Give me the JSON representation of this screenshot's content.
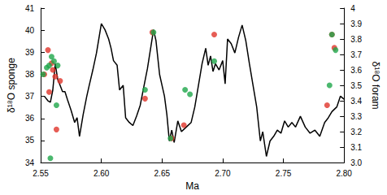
{
  "chart_data": {
    "type": "scatter",
    "x_label": "Ma",
    "y_label": "δ¹⁸O sponge",
    "y2_label": "δ¹⁸O foram",
    "xlim": [
      2.55,
      2.8
    ],
    "xticks": [
      2.55,
      {
        "value": 2.6,
        "label": "2.60"
      },
      2.65,
      {
        "value": 2.7,
        "label": "2.70"
      },
      2.75,
      {
        "value": 2.8,
        "label": "2.80"
      }
    ],
    "ylim": [
      34,
      41
    ],
    "yticks": [
      34,
      35,
      36,
      37,
      38,
      39,
      40,
      41
    ],
    "y2lim": [
      3,
      4
    ],
    "y2ticks": [
      {
        "value": 3,
        "label": "3.0"
      },
      3.1,
      3.2,
      3.3,
      3.4,
      3.5,
      3.6,
      3.7,
      3.8,
      3.9,
      4
    ],
    "grid": false,
    "series": [
      {
        "type": "line",
        "axis": "y2",
        "color": "#000000",
        "marker": "none",
        "x": [
          2.553,
          2.556,
          2.558,
          2.56,
          2.562,
          2.564,
          2.566,
          2.568,
          2.57,
          2.572,
          2.575,
          2.578,
          2.58,
          2.582,
          2.585,
          2.588,
          2.59,
          2.593,
          2.596,
          2.6,
          2.603,
          2.606,
          2.608,
          2.61,
          2.613,
          2.615,
          2.618,
          2.62,
          2.623,
          2.626,
          2.629,
          2.632,
          2.635,
          2.638,
          2.641,
          2.643,
          2.645,
          2.648,
          2.65,
          2.652,
          2.654,
          2.656,
          2.658,
          2.66,
          2.663,
          2.666,
          2.67,
          2.674,
          2.677,
          2.68,
          2.683,
          2.686,
          2.688,
          2.69,
          2.692,
          2.694,
          2.697,
          2.7,
          2.702,
          2.704,
          2.707,
          2.71,
          2.713,
          2.716,
          2.719,
          2.722,
          2.725,
          2.728,
          2.731,
          2.733,
          2.736,
          2.739,
          2.742,
          2.745,
          2.748,
          2.751,
          2.754,
          2.757,
          2.76,
          2.764,
          2.768,
          2.772,
          2.776,
          2.78,
          2.784,
          2.787,
          2.79,
          2.794,
          2.797,
          2.8
        ],
        "values": [
          3.43,
          3.4,
          3.39,
          3.47,
          3.64,
          3.54,
          3.5,
          3.46,
          3.46,
          3.41,
          3.34,
          3.26,
          3.29,
          3.17,
          3.31,
          3.43,
          3.5,
          3.6,
          3.71,
          3.9,
          3.86,
          3.8,
          3.74,
          3.66,
          3.63,
          3.47,
          3.5,
          3.29,
          3.26,
          3.24,
          3.3,
          3.37,
          3.49,
          3.61,
          3.76,
          3.86,
          3.79,
          3.57,
          3.5,
          3.43,
          3.31,
          3.14,
          3.21,
          3.13,
          3.27,
          3.2,
          3.23,
          3.26,
          3.36,
          3.5,
          3.64,
          3.74,
          3.63,
          3.69,
          3.59,
          3.64,
          3.6,
          3.66,
          3.51,
          3.8,
          3.77,
          3.71,
          3.81,
          3.89,
          3.79,
          3.64,
          3.5,
          3.36,
          3.14,
          3.2,
          3.04,
          3.14,
          3.17,
          3.21,
          3.19,
          3.27,
          3.23,
          3.26,
          3.23,
          3.3,
          3.23,
          3.19,
          3.21,
          3.17,
          3.26,
          3.29,
          3.33,
          3.36,
          3.43,
          3.41
        ]
      },
      {
        "type": "scatter",
        "color": "#e0352b",
        "marker": "circle",
        "x": [
          2.553,
          2.556,
          2.557,
          2.559,
          2.56,
          2.562,
          2.563,
          2.566,
          2.636,
          2.642,
          2.658,
          2.668,
          2.693,
          2.786,
          2.79,
          2.792
        ],
        "values": [
          38.0,
          39.1,
          37.2,
          38.5,
          38.2,
          37.9,
          35.5,
          37.7,
          36.9,
          39.9,
          35.1,
          35.7,
          39.8,
          36.6,
          39.8,
          39.2
        ]
      },
      {
        "type": "scatter",
        "color": "#1ea64a",
        "marker": "circle",
        "x": [
          2.552,
          2.555,
          2.557,
          2.558,
          2.559,
          2.561,
          2.563,
          2.564,
          2.636,
          2.643,
          2.657,
          2.669,
          2.673,
          2.693,
          2.788,
          2.79,
          2.793
        ],
        "values": [
          38.0,
          38.3,
          38.4,
          34.2,
          38.8,
          38.6,
          36.6,
          38.4,
          37.3,
          39.9,
          35.1,
          37.3,
          37.1,
          38.6,
          37.5,
          39.8,
          39.1
        ]
      }
    ]
  }
}
